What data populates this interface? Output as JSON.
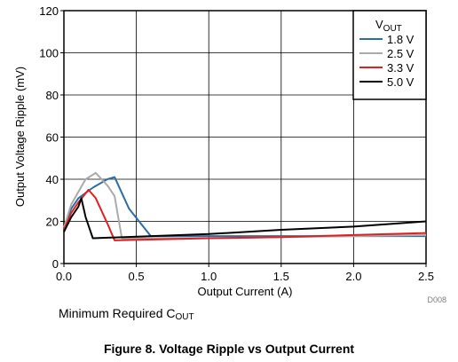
{
  "chart_data": {
    "type": "line",
    "xlabel": "Output Current (A)",
    "ylabel": "Output Voltage Ripple (mV)",
    "xlim": [
      0,
      2.5
    ],
    "ylim": [
      0,
      120
    ],
    "xticks": [
      0,
      0.5,
      1,
      1.5,
      2,
      2.5
    ],
    "xtick_labels": [
      "0.0",
      "0.5",
      "1.0",
      "1.5",
      "2.0",
      "2.5"
    ],
    "yticks": [
      0,
      20,
      40,
      60,
      80,
      100,
      120
    ],
    "ytick_labels": [
      "0",
      "20",
      "40",
      "60",
      "80",
      "100",
      "120"
    ],
    "grid": true,
    "legend_title": "V",
    "legend_title_sub": "OUT",
    "legend_position": "top-right",
    "figure_id": "D008",
    "series": [
      {
        "name": "1.8 V",
        "color": "#2e6da4",
        "x": [
          0,
          0.05,
          0.1,
          0.2,
          0.3,
          0.35,
          0.45,
          0.6,
          1.0,
          1.5,
          2.0,
          2.5
        ],
        "y": [
          17,
          26,
          31,
          36,
          40,
          41,
          26,
          13,
          13,
          13,
          13,
          13
        ]
      },
      {
        "name": "2.5 V",
        "color": "#aaaaaa",
        "x": [
          0,
          0.05,
          0.1,
          0.15,
          0.22,
          0.3,
          0.35,
          0.4,
          1.0,
          1.5,
          2.0,
          2.5
        ],
        "y": [
          17,
          28,
          34,
          40,
          43,
          37,
          32,
          12,
          12,
          12.5,
          13,
          13.5
        ]
      },
      {
        "name": "3.3 V",
        "color": "#e02020",
        "x": [
          0,
          0.05,
          0.1,
          0.17,
          0.22,
          0.3,
          0.35,
          1.0,
          1.5,
          2.0,
          2.5
        ],
        "y": [
          16,
          24,
          29,
          35,
          31,
          19,
          11,
          12,
          12.5,
          13.5,
          14.5
        ]
      },
      {
        "name": "5.0 V",
        "color": "#000000",
        "x": [
          0,
          0.05,
          0.1,
          0.12,
          0.15,
          0.2,
          1.0,
          1.5,
          2.0,
          2.5
        ],
        "y": [
          15,
          22,
          27,
          31,
          22,
          12,
          14,
          16,
          17.5,
          20
        ]
      }
    ]
  },
  "caption": {
    "note_prefix": "Minimum Required C",
    "note_sub": "OUT",
    "figure_title": "Figure 8. Voltage Ripple vs Output Current"
  }
}
